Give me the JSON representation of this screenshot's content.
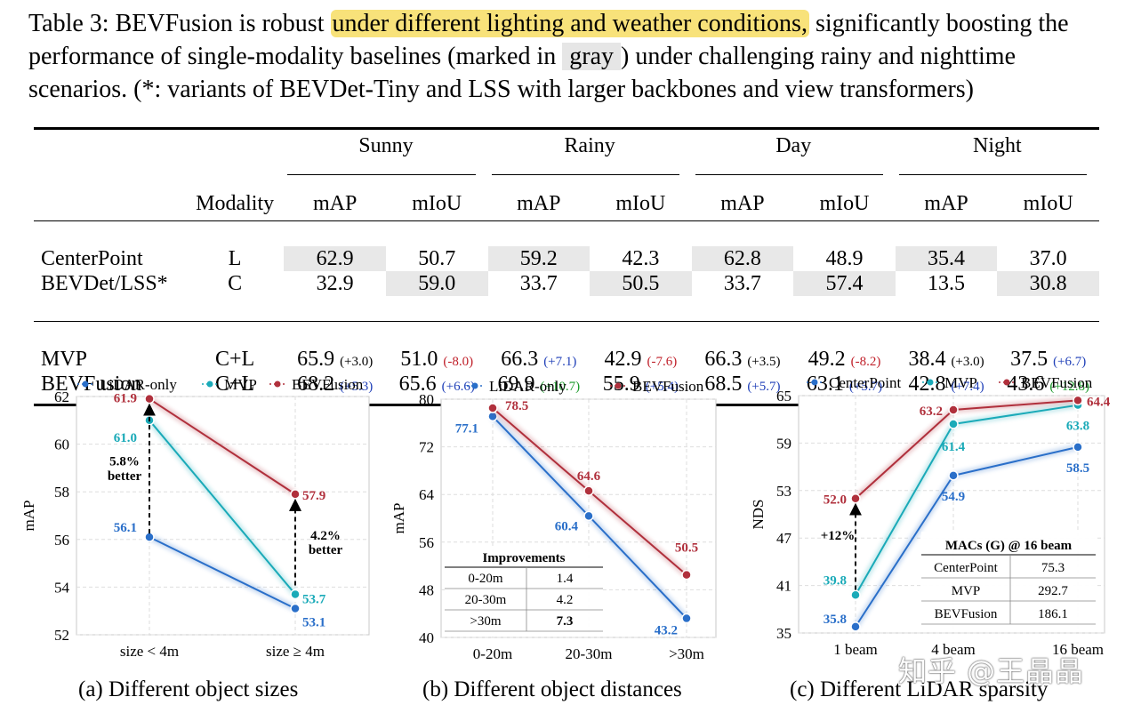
{
  "caption": {
    "lead": "Table 3: BEVFusion is robust ",
    "highlight": "under different lighting and weather conditions,",
    "mid": " significantly boosting the performance of single-modality baselines (marked in ",
    "gray_word": "gray",
    "tail": ") under challenging rainy and nighttime scenarios. (*: variants of BEVDet-Tiny and LSS with larger backbones and view transformers)"
  },
  "table": {
    "groups": [
      "Sunny",
      "Rainy",
      "Day",
      "Night"
    ],
    "modality_header": "Modality",
    "metric_labels": [
      "mAP",
      "mIoU",
      "mAP",
      "mIoU",
      "mAP",
      "mIoU",
      "mAP",
      "mIoU"
    ],
    "baselines": [
      {
        "name": "CenterPoint",
        "modality": "L",
        "values": [
          "62.9",
          "50.7",
          "59.2",
          "42.3",
          "62.8",
          "48.9",
          "35.4",
          "37.0"
        ]
      },
      {
        "name": "BEVDet/LSS*",
        "modality": "C",
        "values": [
          "32.9",
          "59.0",
          "33.7",
          "50.5",
          "33.7",
          "57.4",
          "13.5",
          "30.8"
        ]
      }
    ],
    "fusion": [
      {
        "name": "MVP",
        "modality": "C+L",
        "values": [
          "65.9",
          "51.0",
          "66.3",
          "42.9",
          "66.3",
          "49.2",
          "38.4",
          "37.5"
        ],
        "deltas": [
          "(+3.0)",
          "(-8.0)",
          "(+7.1)",
          "(-7.6)",
          "(+3.5)",
          "(-8.2)",
          "(+3.0)",
          "(+6.7)"
        ]
      },
      {
        "name": "BEVFusion",
        "modality": "C+L",
        "values": [
          "68.2",
          "65.6",
          "69.9",
          "55.9",
          "68.5",
          "63.1",
          "42.8",
          "43.6"
        ],
        "deltas": [
          "(+5.3)",
          "(+6.6)",
          "(+10.7)",
          "(+5.4)",
          "(+5.7)",
          "(+5.7)",
          "(+7.4)",
          "(+12.8)"
        ]
      }
    ],
    "colors": {
      "shade": "#e8e8e8",
      "blue": "#1f3fb8",
      "red": "#c0202a",
      "green": "#1a9a2a"
    }
  },
  "chart_data": [
    {
      "type": "line",
      "caption": "(a) Different object sizes",
      "categories": [
        "size < 4m",
        "size ≥ 4m"
      ],
      "ylabel": "mAP",
      "ylim": [
        52,
        62
      ],
      "yticks": [
        "62",
        "60",
        "58",
        "56",
        "54",
        "52"
      ],
      "series": [
        {
          "name": "LiDAR-only",
          "color": "#2a6fc9",
          "values": [
            56.1,
            53.1
          ],
          "labels": [
            "56.1",
            "53.1"
          ]
        },
        {
          "name": "MVP",
          "color": "#1aaab8",
          "values": [
            61.0,
            53.7
          ],
          "labels": [
            "61.0",
            "53.7"
          ]
        },
        {
          "name": "BEVFusion",
          "color": "#b0303c",
          "values": [
            61.9,
            57.9
          ],
          "labels": [
            "61.9",
            "57.9"
          ]
        }
      ],
      "annotations": [
        {
          "lines": [
            "5.8%",
            "better"
          ]
        },
        {
          "lines": [
            "4.2%",
            "better"
          ]
        }
      ]
    },
    {
      "type": "line",
      "caption": "(b) Different object distances",
      "categories": [
        "0-20m",
        "20-30m",
        ">30m"
      ],
      "ylabel": "mAP",
      "ylim": [
        40,
        80
      ],
      "yticks": [
        "80",
        "72",
        "64",
        "56",
        "48",
        "40"
      ],
      "series": [
        {
          "name": "LiDAR-only",
          "color": "#2a6fc9",
          "values": [
            77.1,
            60.4,
            43.2
          ],
          "labels": [
            "77.1",
            "60.4",
            "43.2"
          ]
        },
        {
          "name": "BEVFusion",
          "color": "#b0303c",
          "values": [
            78.5,
            64.6,
            50.5
          ],
          "labels": [
            "78.5",
            "64.6",
            "50.5"
          ]
        }
      ],
      "inset_table": {
        "title": "Improvements",
        "rows": [
          [
            "0-20m",
            "1.4"
          ],
          [
            "20-30m",
            "4.2"
          ],
          [
            ">30m",
            "7.3"
          ]
        ]
      }
    },
    {
      "type": "line",
      "caption": "(c) Different LiDAR sparsity",
      "categories": [
        "1 beam",
        "4 beam",
        "16 beam"
      ],
      "ylabel": "NDS",
      "ylim": [
        35,
        65
      ],
      "yticks": [
        "65",
        "59",
        "53",
        "47",
        "41",
        "35"
      ],
      "series": [
        {
          "name": "CenterPoint",
          "color": "#2a6fc9",
          "values": [
            35.8,
            54.9,
            58.5
          ],
          "labels": [
            "35.8",
            "54.9",
            "58.5"
          ]
        },
        {
          "name": "MVP",
          "color": "#1aaab8",
          "values": [
            39.8,
            61.4,
            63.8
          ],
          "labels": [
            "39.8",
            "61.4",
            "63.8"
          ]
        },
        {
          "name": "BEVFusion",
          "color": "#b0303c",
          "values": [
            52.0,
            63.2,
            64.4
          ],
          "labels": [
            "52.0",
            "63.2",
            "64.4"
          ]
        }
      ],
      "annotations": [
        {
          "lines": [
            "+12%"
          ]
        }
      ],
      "inset_table": {
        "title": "MACs (G) @ 16 beam",
        "rows": [
          [
            "CenterPoint",
            "75.3"
          ],
          [
            "MVP",
            "292.7"
          ],
          [
            "BEVFusion",
            "186.1"
          ]
        ]
      }
    }
  ],
  "watermark": "知乎 @王晶晶"
}
